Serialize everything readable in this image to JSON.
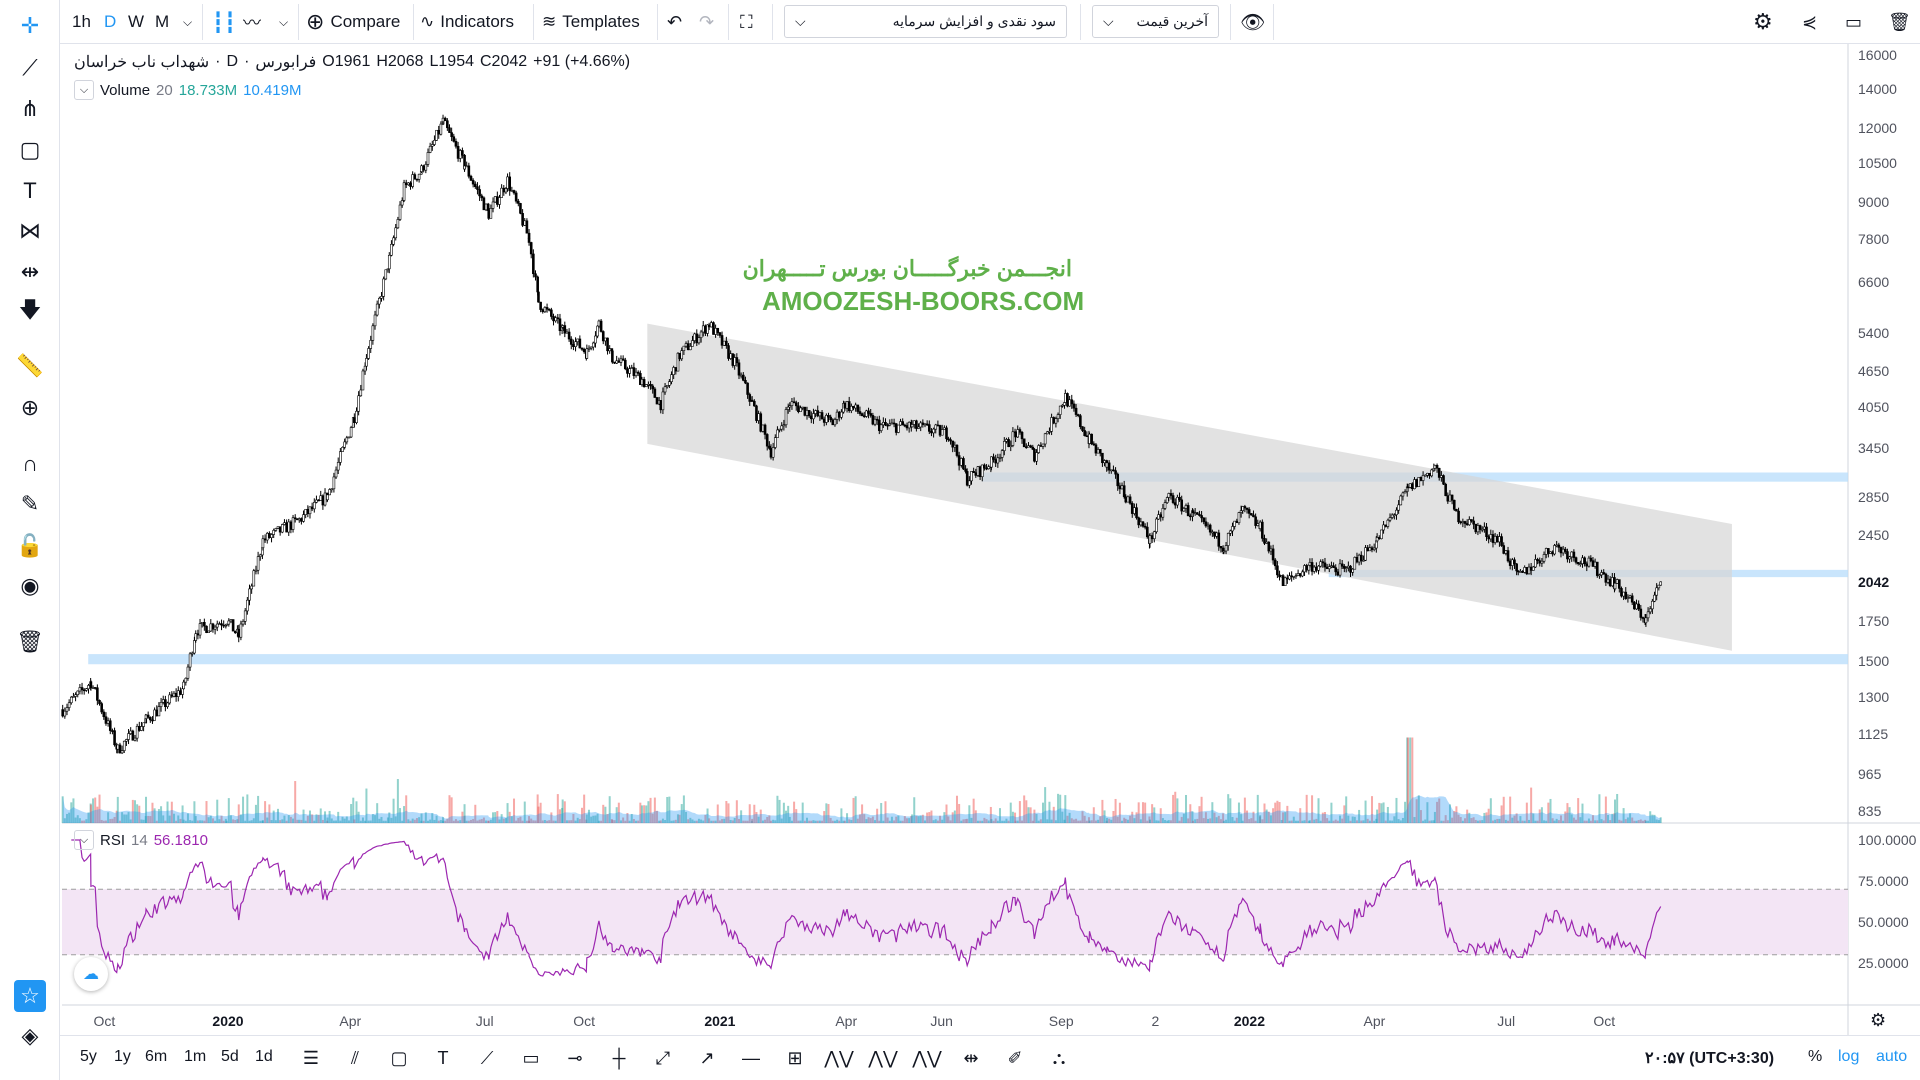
{
  "toolbar": {
    "intervals": [
      "1h",
      "D",
      "W",
      "M"
    ],
    "active_interval": "D",
    "compare": "Compare",
    "indicators": "Indicators",
    "templates": "Templates",
    "dividend_select": "سود نقدی و افزایش سرمایه",
    "price_select": "آخرین قیمت"
  },
  "legend": {
    "symbol": "شهداب ناب خراسان",
    "interval": "D",
    "exchange": "فرابورس",
    "open": "O1961",
    "high": "H2068",
    "low": "L1954",
    "close": "C2042",
    "change": "+91 (+4.66%)"
  },
  "volume_legend": {
    "name": "Volume",
    "length": "20",
    "value": "18.733M",
    "ma": "10.419M"
  },
  "rsi_legend": {
    "name": "RSI",
    "length": "14",
    "value": "56.1810"
  },
  "watermark": {
    "fa": "انجـــمن خبرگـــــان بورس تـــــهران",
    "en": "AMOOZESH-BOORS.COM"
  },
  "price_axis": [
    "16000",
    "14000",
    "12000",
    "10500",
    "9000",
    "7800",
    "6600",
    "5400",
    "4650",
    "4050",
    "3450",
    "2850",
    "2450",
    "2042",
    "1750",
    "1500",
    "1300",
    "1125",
    "965",
    "835"
  ],
  "rsi_axis": [
    "100.0000",
    "75.0000",
    "50.0000",
    "25.0000"
  ],
  "time_axis": [
    {
      "label": "Oct",
      "day": -92
    },
    {
      "label": "2020",
      "day": 0
    },
    {
      "label": "Apr",
      "day": 91
    },
    {
      "label": "Jul",
      "day": 191
    },
    {
      "label": "Oct",
      "day": 265
    },
    {
      "label": "2021",
      "day": 366
    },
    {
      "label": "Apr",
      "day": 460
    },
    {
      "label": "Jun",
      "day": 531
    },
    {
      "label": "Sep",
      "day": 620
    },
    {
      "label": "2",
      "day": 690
    },
    {
      "label": "2022",
      "day": 760
    },
    {
      "label": "Apr",
      "day": 853
    },
    {
      "label": "Jul",
      "day": 951
    },
    {
      "label": "Oct",
      "day": 1024
    }
  ],
  "bottom": {
    "ranges": [
      "5y",
      "1y",
      "6m",
      "1m",
      "5d",
      "1d"
    ],
    "clock": "۲۰:۵۷ (UTC+3:30)",
    "percent": "%",
    "log": "log",
    "auto": "auto"
  },
  "colors": {
    "accent": "#2196f3",
    "volume_up": "#26a69a",
    "volume_down": "#ef5350",
    "volume_ma": "#2196f3",
    "rsi": "#9c27b0",
    "channel": "#d6d6d6",
    "zone": "#bbdefb"
  },
  "chart_data": {
    "type": "candlestick",
    "scale": "log",
    "x_unit": "days since 2020-01-01",
    "ylim": [
      835,
      16000
    ],
    "last_price": 2042,
    "price_path": [
      [
        -123,
        1240
      ],
      [
        -102,
        1380
      ],
      [
        -82,
        1060
      ],
      [
        -61,
        1190
      ],
      [
        -33,
        1350
      ],
      [
        -24,
        1690
      ],
      [
        -1,
        1760
      ],
      [
        8,
        1650
      ],
      [
        26,
        2400
      ],
      [
        53,
        2600
      ],
      [
        74,
        2860
      ],
      [
        94,
        3900
      ],
      [
        103,
        4950
      ],
      [
        120,
        7200
      ],
      [
        131,
        9500
      ],
      [
        144,
        10200
      ],
      [
        160,
        12300
      ],
      [
        176,
        10400
      ],
      [
        194,
        8600
      ],
      [
        208,
        9800
      ],
      [
        224,
        7800
      ],
      [
        231,
        6100
      ],
      [
        249,
        5450
      ],
      [
        267,
        5000
      ],
      [
        276,
        5600
      ],
      [
        286,
        4900
      ],
      [
        308,
        4500
      ],
      [
        322,
        4100
      ],
      [
        336,
        4950
      ],
      [
        358,
        5600
      ],
      [
        377,
        4800
      ],
      [
        390,
        4100
      ],
      [
        404,
        3400
      ],
      [
        418,
        4100
      ],
      [
        450,
        3800
      ],
      [
        459,
        4100
      ],
      [
        486,
        3750
      ],
      [
        509,
        3750
      ],
      [
        536,
        3650
      ],
      [
        550,
        3050
      ],
      [
        568,
        3250
      ],
      [
        586,
        3650
      ],
      [
        600,
        3350
      ],
      [
        623,
        4200
      ],
      [
        641,
        3550
      ],
      [
        654,
        3200
      ],
      [
        668,
        2860
      ],
      [
        686,
        2400
      ],
      [
        700,
        2860
      ],
      [
        718,
        2650
      ],
      [
        741,
        2350
      ],
      [
        755,
        2700
      ],
      [
        768,
        2520
      ],
      [
        785,
        2030
      ],
      [
        805,
        2180
      ],
      [
        832,
        2130
      ],
      [
        855,
        2400
      ],
      [
        878,
        2930
      ],
      [
        898,
        3200
      ],
      [
        914,
        2650
      ],
      [
        946,
        2400
      ],
      [
        960,
        2080
      ],
      [
        987,
        2350
      ],
      [
        1014,
        2180
      ],
      [
        1032,
        2030
      ],
      [
        1055,
        1760
      ],
      [
        1066,
        2042
      ]
    ],
    "channel": {
      "upper": [
        [
          312,
          5600
        ],
        [
          1119,
          2560
        ]
      ],
      "lower": [
        [
          312,
          3500
        ],
        [
          1119,
          1560
        ]
      ]
    },
    "zones": [
      {
        "from_day": -104,
        "low": 1480,
        "high": 1540
      },
      {
        "from_day": 561,
        "low": 3020,
        "high": 3130
      },
      {
        "from_day": 819,
        "low": 2080,
        "high": 2140
      }
    ],
    "rsi_levels": [
      30,
      70
    ]
  }
}
